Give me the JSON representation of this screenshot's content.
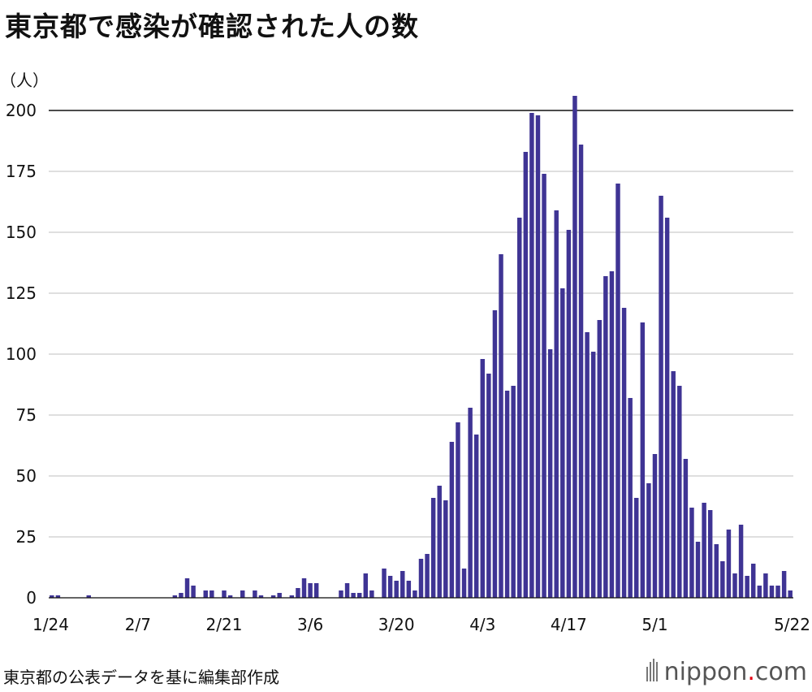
{
  "title": "東京都で感染が確認された人の数",
  "source_note": "東京都の公表データを基に編集部作成",
  "logo": {
    "text_main": "nippon",
    "text_dot": ".",
    "text_tld": "com",
    "dot_color": "#e60012"
  },
  "colors": {
    "bar": "#3f3494",
    "grid": "#cccccc",
    "axis": "#111111"
  },
  "chart_data": {
    "type": "bar",
    "title": "東京都で感染が確認された人の数",
    "ylabel": "（人）",
    "xlabel": "",
    "ylim": [
      0,
      200
    ],
    "yticks": [
      0,
      25,
      50,
      75,
      100,
      125,
      150,
      175,
      200
    ],
    "grid": true,
    "x_start": "1/24",
    "x_end": "5/22",
    "x_tick_labels": [
      "1/24",
      "2/7",
      "2/21",
      "3/6",
      "3/20",
      "4/3",
      "4/17",
      "5/1",
      "5/22"
    ],
    "x_tick_index": [
      0,
      14,
      28,
      42,
      56,
      70,
      84,
      98,
      119
    ],
    "values": [
      1,
      1,
      0,
      0,
      0,
      0,
      1,
      0,
      0,
      0,
      0,
      0,
      0,
      0,
      0,
      0,
      0,
      0,
      0,
      0,
      1,
      2,
      8,
      5,
      0,
      3,
      3,
      0,
      3,
      1,
      0,
      3,
      0,
      3,
      1,
      0,
      1,
      2,
      0,
      1,
      4,
      8,
      6,
      6,
      0,
      0,
      0,
      3,
      6,
      2,
      2,
      10,
      3,
      0,
      12,
      9,
      7,
      11,
      7,
      3,
      16,
      18,
      41,
      46,
      40,
      64,
      72,
      12,
      78,
      67,
      98,
      92,
      118,
      141,
      85,
      87,
      156,
      183,
      199,
      198,
      174,
      102,
      159,
      127,
      151,
      206,
      186,
      109,
      101,
      114,
      132,
      134,
      170,
      119,
      82,
      41,
      113,
      47,
      59,
      165,
      156,
      93,
      87,
      57,
      37,
      23,
      39,
      36,
      22,
      15,
      28,
      10,
      30,
      9,
      14,
      5,
      10,
      5,
      5,
      11,
      3
    ]
  }
}
